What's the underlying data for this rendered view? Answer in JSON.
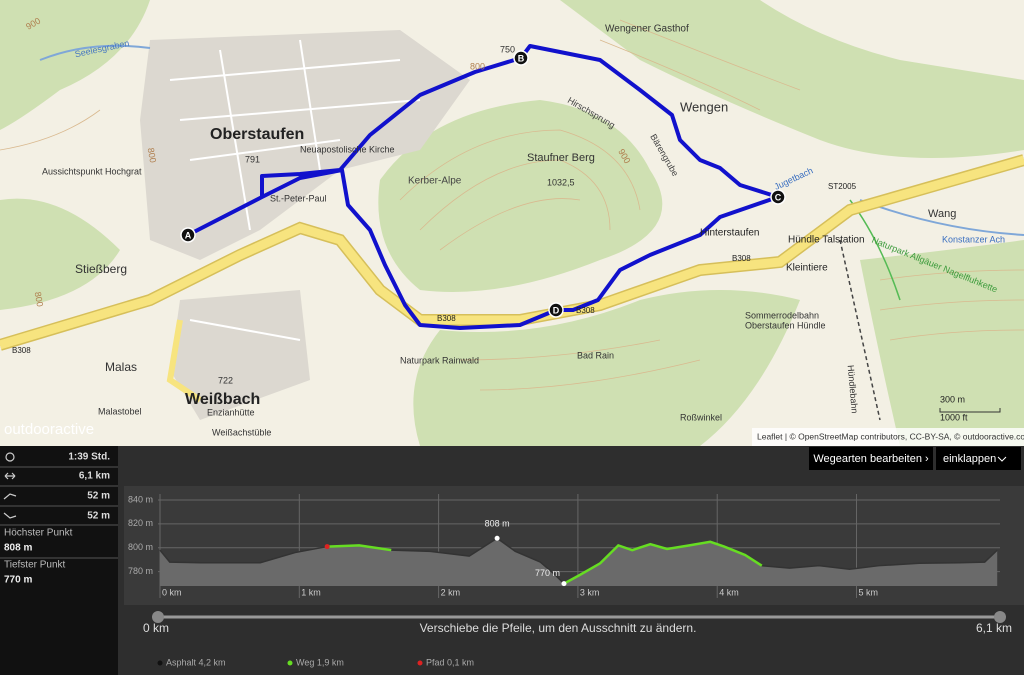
{
  "map": {
    "labels": [
      "Oberstaufen",
      "Weißbach",
      "Wengen",
      "Stießberg",
      "Malas",
      "Staufner Berg",
      "1032,5",
      "750",
      "791",
      "722",
      "Kerber-Alpe",
      "Neuapostolische Kirche",
      "St.-Peter-Paul",
      "Aussichtspunkt Hochgrat",
      "Seelesgraben",
      "Hirschsprung",
      "Bärengrube",
      "Wengener Gasthof",
      "Hinterstaufen",
      "Hündle Talstation",
      "Kleintiere",
      "Wang",
      "Konstanzer Ach",
      "Naturpark Allgäuer Nagelfluhkette",
      "Jugetbach",
      "ST2005",
      "B308",
      "B308",
      "B308",
      "B308",
      "Sommerrodelbahn",
      "Oberstaufen Hündle",
      "Hündlebahn",
      "Bad Rain",
      "Roßwinkel",
      "Naturpark Rainwald",
      "Malastobel",
      "Enzianhütte",
      "Weißachstüble",
      "800",
      "900",
      "800",
      "800",
      "900"
    ],
    "markers": [
      "A",
      "B",
      "C",
      "D"
    ],
    "scale": [
      "300 m",
      "1000 ft"
    ],
    "logo": "outdooractive",
    "attribution": "Leaflet | © OpenStreetMap contributors, CC-BY-SA, © outdooractive.com"
  },
  "stats": {
    "rows": [
      "1:39 Std.",
      "6,1 km",
      "52 m",
      "52 m"
    ],
    "highest_label": "Höchster Punkt",
    "highest": "808 m",
    "lowest_label": "Tiefster Punkt",
    "lowest": "770 m"
  },
  "buttons": [
    "Wegearten bearbeiten ›",
    "einklappen"
  ],
  "chart_data": {
    "type": "area",
    "x": [
      0,
      0.07,
      0.29,
      0.72,
      0.97,
      1.2,
      1.43,
      1.66,
      1.94,
      2.22,
      2.42,
      2.55,
      2.73,
      2.83,
      2.9,
      3.01,
      3.16,
      3.29,
      3.39,
      3.52,
      3.64,
      3.8,
      3.95,
      4.05,
      4.2,
      4.32,
      4.52,
      4.73,
      4.95,
      5.16,
      5.45,
      5.74,
      5.92,
      6.01
    ],
    "series": [
      {
        "name": "Asphalt 4,2 km",
        "color": "#333333",
        "values": [
          798,
          788,
          787.5,
          787.5,
          796,
          801,
          802,
          798,
          797,
          793,
          808,
          797,
          788,
          778,
          770,
          777,
          787,
          802,
          798,
          803,
          799,
          802,
          805,
          801,
          794,
          785,
          783,
          785,
          782,
          785,
          787,
          787.5,
          788,
          798
        ]
      },
      {
        "name": "Weg 1,9 km",
        "color": "#66dd22",
        "values": [
          null,
          null,
          null,
          null,
          null,
          801,
          802,
          798,
          null,
          null,
          null,
          null,
          null,
          null,
          770,
          777,
          787,
          802,
          798,
          803,
          799,
          802,
          805,
          801,
          794,
          785,
          null,
          null,
          null,
          null,
          null,
          null,
          null,
          null
        ]
      },
      {
        "name": "Pfad 0,1 km",
        "color": "#dd2222",
        "values": [
          null,
          null,
          null,
          null,
          null,
          801,
          null,
          null,
          null,
          null,
          null,
          null,
          null,
          null,
          null,
          null,
          null,
          null,
          null,
          null,
          null,
          null,
          null,
          null,
          null,
          null,
          null,
          null,
          null,
          null,
          null,
          null,
          null,
          null
        ]
      }
    ],
    "xlim": [
      0,
      6.03
    ],
    "xticks": [
      {
        "value": 0,
        "label": "0 km"
      },
      {
        "value": 1,
        "label": "1 km"
      },
      {
        "value": 2,
        "label": "2 km"
      },
      {
        "value": 3,
        "label": "3 km"
      },
      {
        "value": 4,
        "label": "4 km"
      },
      {
        "value": 5,
        "label": "5 km"
      }
    ],
    "ylim": [
      768,
      845
    ],
    "yticks": [
      {
        "value": 840,
        "label": "840 m"
      },
      {
        "value": 820,
        "label": "820 m"
      },
      {
        "value": 800,
        "label": "800 m"
      },
      {
        "value": 780,
        "label": "780 m"
      }
    ],
    "grid": true,
    "annotations": [
      {
        "text": "808 m",
        "x": 2.42,
        "y": 808
      },
      {
        "text": "770 m",
        "x": 2.9,
        "y": 770
      }
    ]
  },
  "slider": {
    "start": "0 km",
    "hint": "Verschiebe die Pfeile, um den Ausschnitt zu ändern.",
    "end": "6,1 km"
  }
}
